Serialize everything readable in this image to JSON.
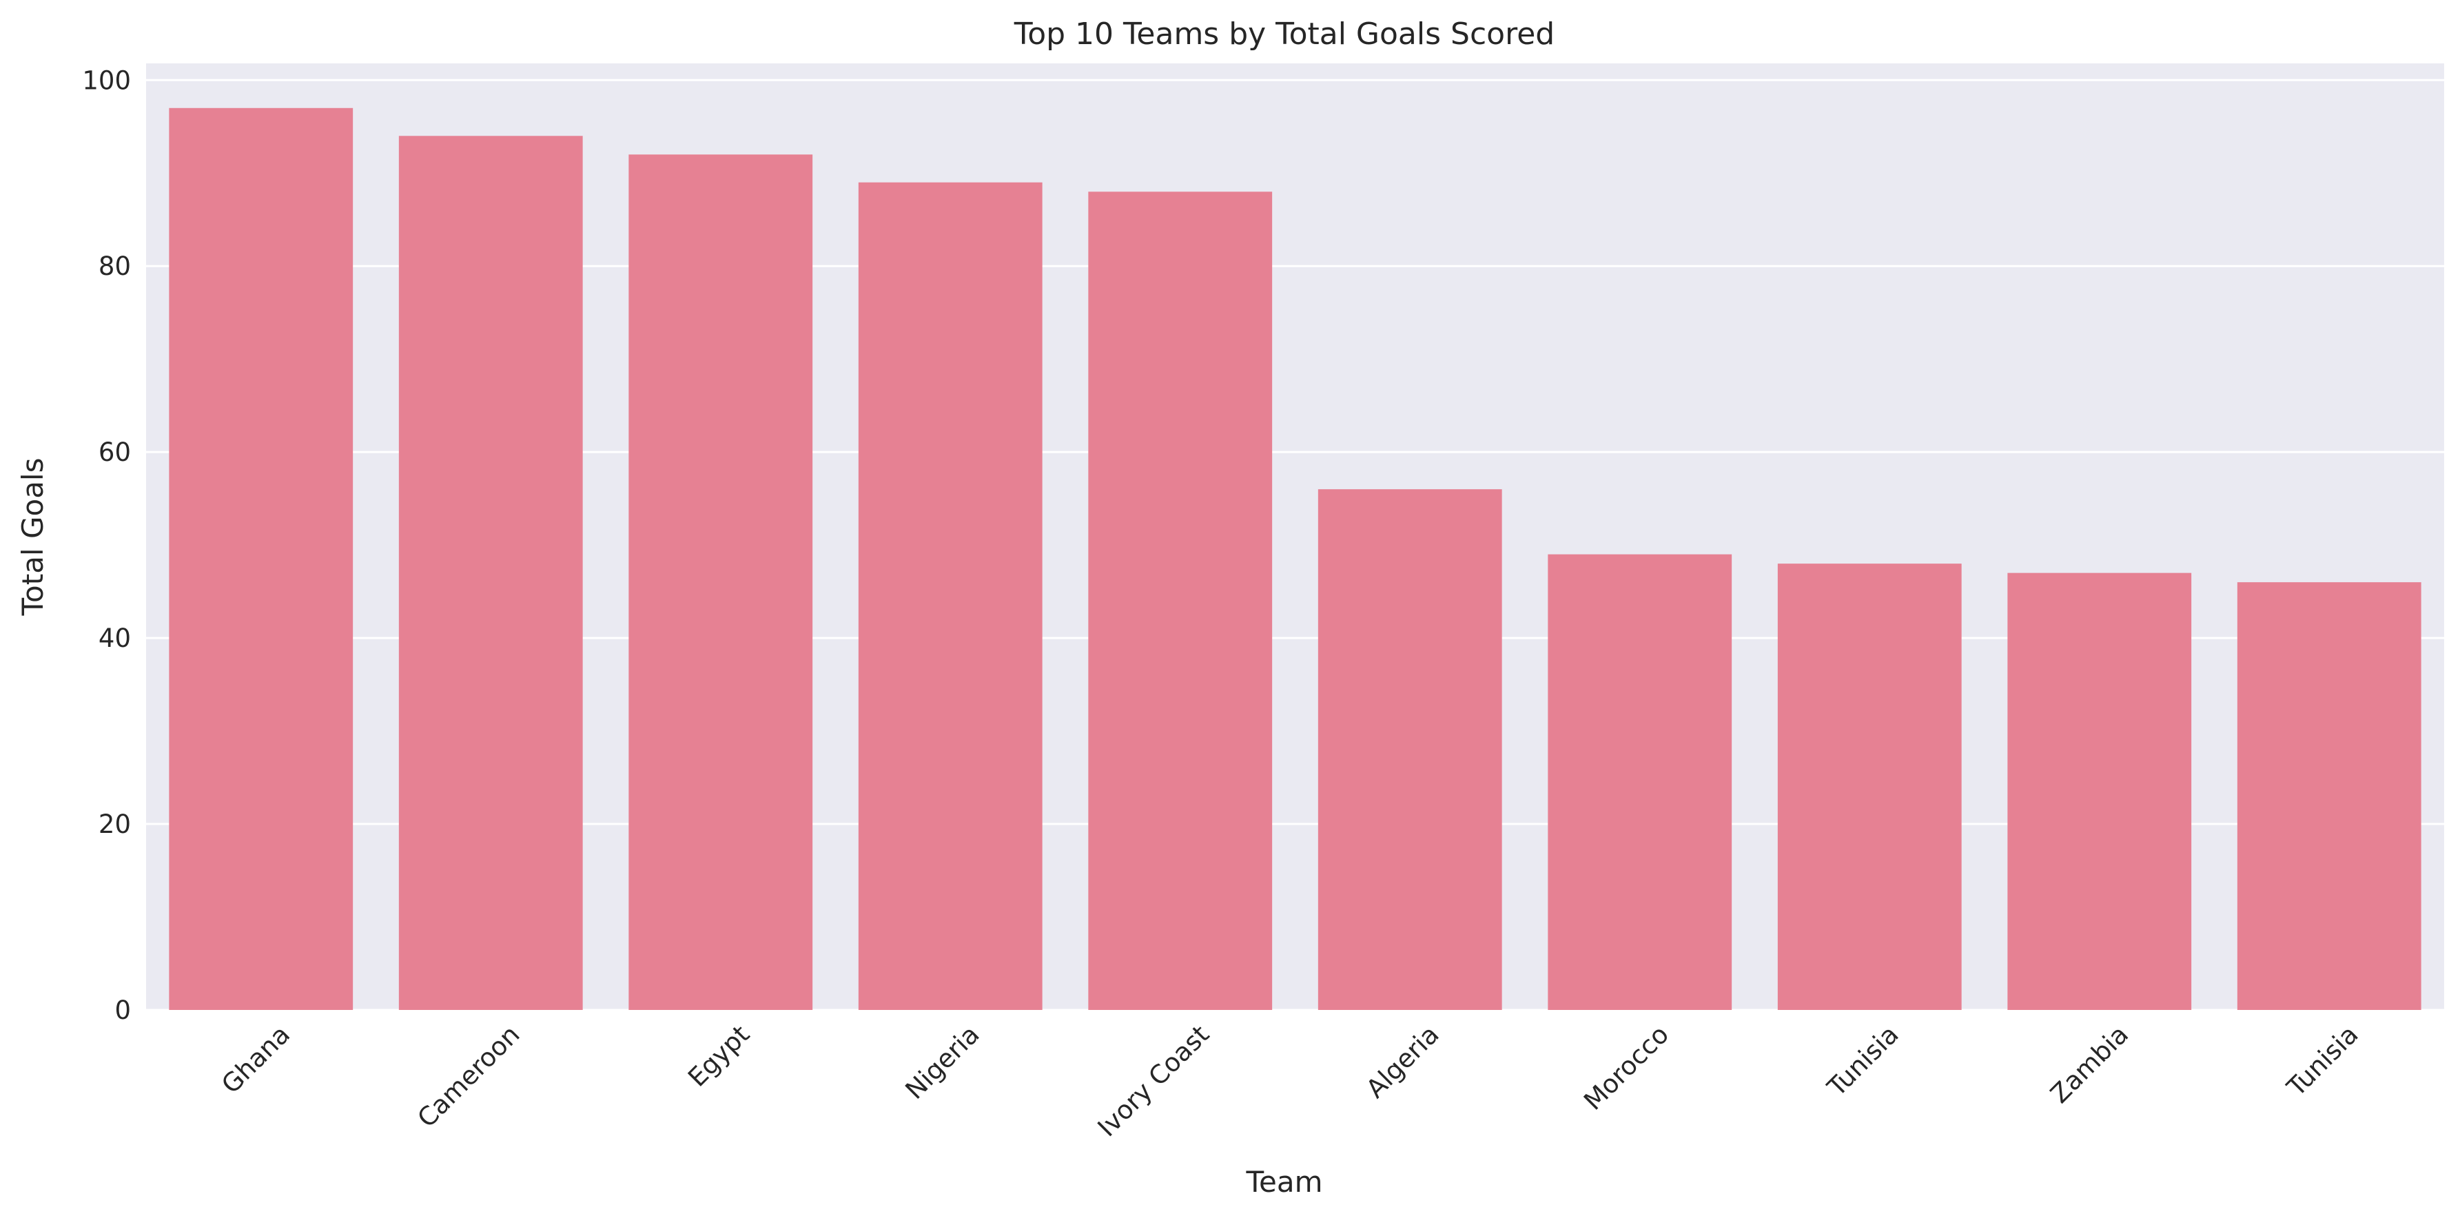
{
  "chart_data": {
    "type": "bar",
    "title": "Top 10 Teams by Total Goals Scored",
    "xlabel": "Team",
    "ylabel": "Total Goals",
    "categories": [
      "Ghana",
      "Cameroon",
      "Egypt",
      "Nigeria",
      "Ivory Coast",
      "Algeria",
      "Morocco",
      "Tunisia",
      "Zambia",
      "Tunisia"
    ],
    "values": [
      97,
      94,
      92,
      89,
      88,
      56,
      49,
      48,
      47,
      46
    ],
    "ylim": [
      0,
      101.8
    ],
    "yticks": [
      0,
      20,
      40,
      60,
      80,
      100
    ],
    "grid": true,
    "bar_color": "#e68193",
    "background_color": "#eaeaf2",
    "grid_color": "#ffffff"
  }
}
